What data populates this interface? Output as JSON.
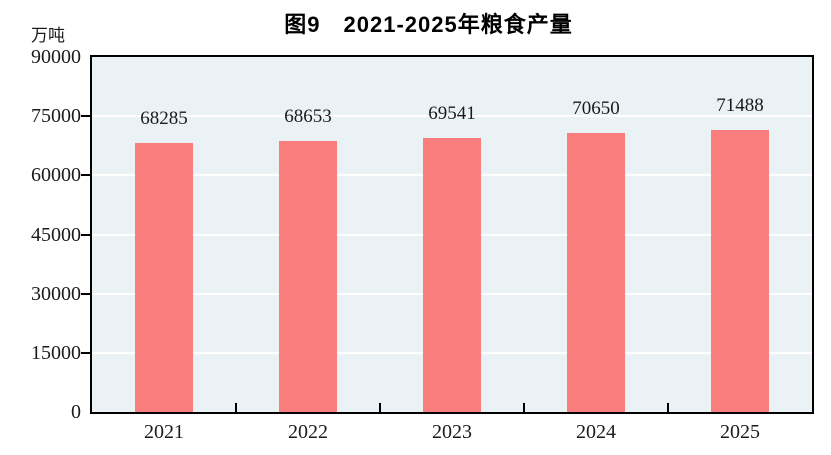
{
  "header": {
    "title": "图9　2021-2025年粮食产量",
    "unit_label": "万吨"
  },
  "chart_data": {
    "type": "bar",
    "title": "图9　2021-2025年粮食产量",
    "categories": [
      "2021",
      "2022",
      "2023",
      "2024",
      "2025"
    ],
    "values": [
      68285,
      68653,
      69541,
      70650,
      71488
    ],
    "value_labels": [
      "68285",
      "68653",
      "69541",
      "70650",
      "71488"
    ],
    "xlabel": "",
    "ylabel": "万吨",
    "ylim": [
      0,
      90000
    ],
    "yticks": [
      0,
      15000,
      30000,
      45000,
      60000,
      75000,
      90000
    ],
    "ytick_labels": [
      "0",
      "15000",
      "30000",
      "45000",
      "60000",
      "75000",
      "90000"
    ],
    "grid": "horizontal",
    "legend": "none",
    "colors": {
      "bar_fill": "#FB7E7E",
      "plot_background": "#EAF2F6",
      "gridline": "#FFFFFF",
      "axis": "#000000",
      "text": "#1B1B1B"
    }
  }
}
